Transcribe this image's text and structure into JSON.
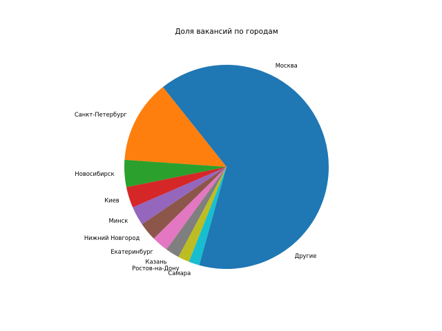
{
  "chart_data": {
    "type": "pie",
    "title": "Доля вакансий по городам",
    "start_angle_deg": 0,
    "direction": "counterclockwise",
    "slices": [
      {
        "label": "Москва",
        "value": 35.7,
        "color": "#1f77b4"
      },
      {
        "label": "Санкт-Петербург",
        "value": 13.2,
        "color": "#ff7f0e"
      },
      {
        "label": "Новосибирск",
        "value": 4.3,
        "color": "#2ca02c"
      },
      {
        "label": "Киев",
        "value": 3.3,
        "color": "#d62728"
      },
      {
        "label": "Минск",
        "value": 3.0,
        "color": "#9467bd"
      },
      {
        "label": "Нижний Новгород",
        "value": 2.9,
        "color": "#8c564b"
      },
      {
        "label": "Екатеринбург",
        "value": 2.6,
        "color": "#e377c2"
      },
      {
        "label": "Казань",
        "value": 2.2,
        "color": "#7f7f7f"
      },
      {
        "label": "Ростов-на-Дону",
        "value": 1.8,
        "color": "#bcbd22"
      },
      {
        "label": "Самара",
        "value": 1.7,
        "color": "#17becf"
      },
      {
        "label": "Другие",
        "value": 29.3,
        "color": "#1f77b4"
      }
    ]
  }
}
